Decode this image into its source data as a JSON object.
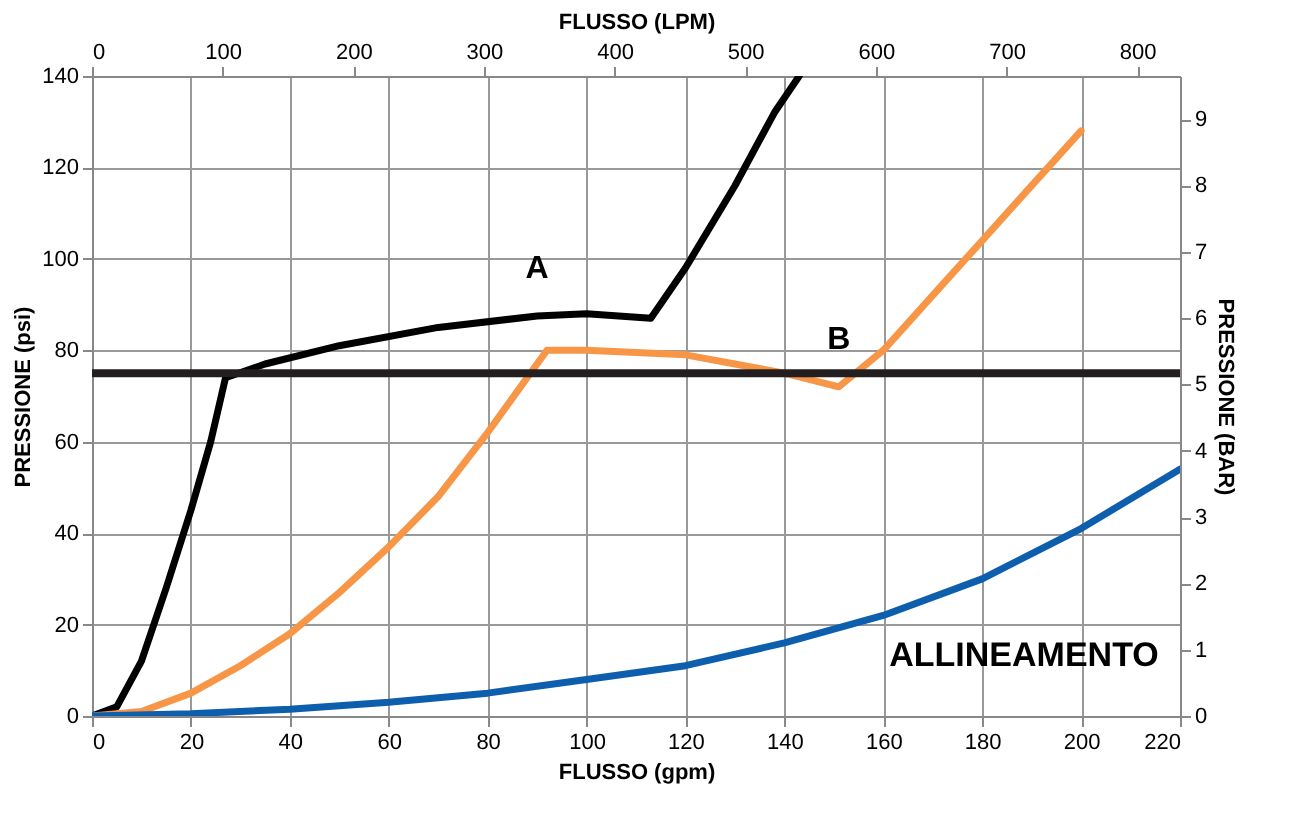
{
  "chart_data": {
    "type": "line",
    "xlabel": "FLUSSO (gpm)",
    "ylabel": "PRESSIONE (psi)",
    "x2label": "FLUSSO (LPM)",
    "y2label": "PRESSIONE (BAR)",
    "xlim": [
      0,
      220
    ],
    "xticks": [
      0,
      20,
      40,
      60,
      80,
      100,
      120,
      140,
      160,
      180,
      200,
      220
    ],
    "ylim": [
      0,
      140
    ],
    "yticks": [
      0,
      20,
      40,
      60,
      80,
      100,
      120,
      140
    ],
    "x2lim": [
      0,
      832.8
    ],
    "x2ticks": [
      0,
      100,
      200,
      300,
      400,
      500,
      600,
      700,
      800
    ],
    "y2lim": [
      0,
      9.65
    ],
    "y2ticks": [
      0,
      1,
      2,
      3,
      4,
      5,
      6,
      7,
      8,
      9
    ],
    "grid": true,
    "line_style": "solid",
    "marker": "none",
    "series": [
      {
        "color": "#000000",
        "x": [
          0,
          5,
          10,
          15,
          20,
          24,
          27,
          35,
          50,
          70,
          90,
          100,
          113,
          120,
          130,
          138,
          143
        ],
        "values": [
          0,
          2,
          12,
          28,
          45,
          60,
          74,
          77,
          81,
          85,
          87.5,
          88,
          87,
          98,
          116,
          132,
          140
        ]
      },
      {
        "color": "#f79646",
        "x": [
          0,
          10,
          20,
          30,
          40,
          50,
          60,
          70,
          80,
          92,
          100,
          120,
          140,
          151,
          160,
          170,
          180,
          190,
          200
        ],
        "values": [
          0,
          1,
          5,
          11,
          18,
          27,
          37,
          48,
          62,
          80,
          80,
          79,
          75,
          72,
          80,
          92,
          104,
          116,
          128
        ]
      },
      {
        "color": "#0d5fad",
        "x": [
          0,
          20,
          40,
          60,
          80,
          100,
          120,
          140,
          160,
          180,
          200,
          220
        ],
        "values": [
          0,
          0.5,
          1.5,
          3,
          5,
          8,
          11,
          16,
          22,
          30,
          41,
          54
        ]
      }
    ],
    "ref_lines": [
      {
        "axis": "y",
        "value": 75,
        "color": "#231f20"
      }
    ],
    "annotations": [
      {
        "text": "A",
        "x": 90,
        "y": 87.5
      },
      {
        "text": "B",
        "x": 151,
        "y": 72
      },
      "ALLINEAMENTO"
    ]
  }
}
